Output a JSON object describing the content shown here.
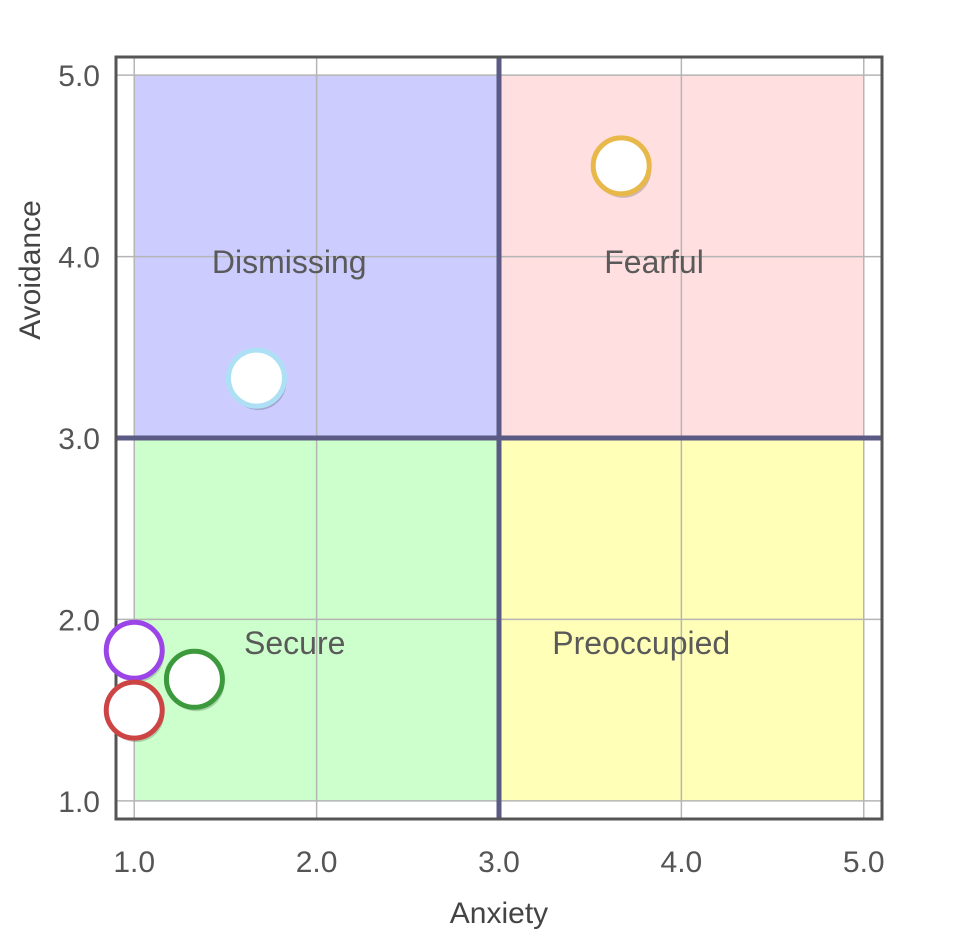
{
  "chart_data": {
    "type": "scatter",
    "title": "",
    "xlabel": "Anxiety",
    "ylabel": "Avoidance",
    "xlim": [
      0.9,
      5.1
    ],
    "ylim": [
      0.9,
      5.1
    ],
    "x_ticks": [
      "1.0",
      "2.0",
      "3.0",
      "4.0",
      "5.0"
    ],
    "y_ticks": [
      "1.0",
      "2.0",
      "3.0",
      "4.0",
      "5.0"
    ],
    "grid": true,
    "divider": {
      "x": 3.0,
      "y": 3.0,
      "color": "#5a5a85"
    },
    "quadrants": [
      {
        "label": "Dismissing",
        "x_range": [
          1.0,
          3.0
        ],
        "y_range": [
          3.0,
          5.0
        ],
        "label_pos": [
          1.85,
          3.97
        ],
        "color": "#ccccff"
      },
      {
        "label": "Fearful",
        "x_range": [
          3.0,
          5.0
        ],
        "y_range": [
          3.0,
          5.0
        ],
        "label_pos": [
          3.85,
          3.97
        ],
        "color": "#ffdfe0"
      },
      {
        "label": "Secure",
        "x_range": [
          1.0,
          3.0
        ],
        "y_range": [
          1.0,
          3.0
        ],
        "label_pos": [
          1.88,
          1.87
        ],
        "color": "#ccffcc"
      },
      {
        "label": "Preoccupied",
        "x_range": [
          3.0,
          5.0
        ],
        "y_range": [
          1.0,
          3.0
        ],
        "label_pos": [
          3.78,
          1.87
        ],
        "color": "#ffffb8"
      }
    ],
    "points": [
      {
        "x": 3.67,
        "y": 4.5,
        "color": "#e8b84a"
      },
      {
        "x": 1.67,
        "y": 3.33,
        "color": "#aee0f5"
      },
      {
        "x": 1.0,
        "y": 1.83,
        "color": "#9b45e8"
      },
      {
        "x": 1.33,
        "y": 1.67,
        "color": "#3c9a3c"
      },
      {
        "x": 1.0,
        "y": 1.5,
        "color": "#cc4444"
      }
    ]
  }
}
